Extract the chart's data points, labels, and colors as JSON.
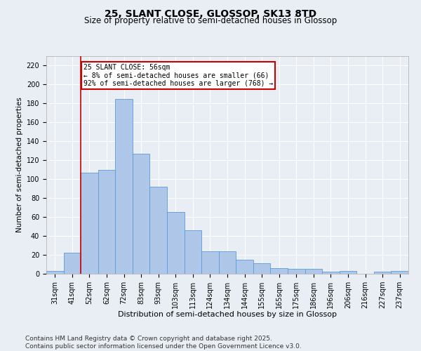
{
  "title": "25, SLANT CLOSE, GLOSSOP, SK13 8TD",
  "subtitle": "Size of property relative to semi-detached houses in Glossop",
  "xlabel": "Distribution of semi-detached houses by size in Glossop",
  "ylabel": "Number of semi-detached properties",
  "categories": [
    "31sqm",
    "41sqm",
    "52sqm",
    "62sqm",
    "72sqm",
    "83sqm",
    "93sqm",
    "103sqm",
    "113sqm",
    "124sqm",
    "134sqm",
    "144sqm",
    "155sqm",
    "165sqm",
    "175sqm",
    "186sqm",
    "196sqm",
    "206sqm",
    "216sqm",
    "227sqm",
    "237sqm"
  ],
  "values": [
    3,
    22,
    107,
    110,
    185,
    127,
    92,
    65,
    46,
    24,
    24,
    15,
    11,
    6,
    5,
    5,
    2,
    3,
    0,
    2,
    3
  ],
  "bar_color": "#aec6e8",
  "bar_edge_color": "#5b9bd5",
  "red_line_index": 2,
  "annotation_title": "25 SLANT CLOSE: 56sqm",
  "annotation_line1": "← 8% of semi-detached houses are smaller (66)",
  "annotation_line2": "92% of semi-detached houses are larger (768) →",
  "annotation_box_color": "#ffffff",
  "annotation_box_edge": "#cc0000",
  "ylim": [
    0,
    230
  ],
  "yticks": [
    0,
    20,
    40,
    60,
    80,
    100,
    120,
    140,
    160,
    180,
    200,
    220
  ],
  "background_color": "#e8eef4",
  "grid_color": "#ffffff",
  "footer": "Contains HM Land Registry data © Crown copyright and database right 2025.\nContains public sector information licensed under the Open Government Licence v3.0.",
  "title_fontsize": 10,
  "subtitle_fontsize": 8.5,
  "xlabel_fontsize": 8,
  "ylabel_fontsize": 7.5,
  "tick_fontsize": 7,
  "annot_fontsize": 7,
  "footer_fontsize": 6.5
}
